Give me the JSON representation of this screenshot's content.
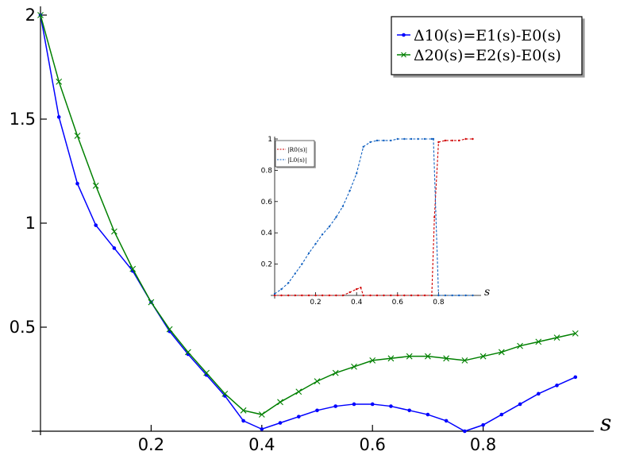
{
  "chart_data": [
    {
      "type": "line",
      "xlabel": "s",
      "ylabel": "",
      "xlim": [
        0,
        1
      ],
      "ylim": [
        0,
        2
      ],
      "xticks": [
        "0.2",
        "0.4",
        "0.6",
        "0.8"
      ],
      "yticks": [
        "0.5",
        "1",
        "1.5",
        "2"
      ],
      "legend_position": "top-right",
      "x": [
        0.0,
        0.0333,
        0.0667,
        0.1,
        0.1333,
        0.1667,
        0.2,
        0.2333,
        0.2667,
        0.3,
        0.3333,
        0.3667,
        0.4,
        0.4333,
        0.4667,
        0.5,
        0.5333,
        0.5667,
        0.6,
        0.6333,
        0.6667,
        0.7,
        0.7333,
        0.7667,
        0.8,
        0.8333,
        0.8667,
        0.9,
        0.9333,
        0.9667
      ],
      "series": [
        {
          "name": "Δ10(s)=E1(s)-E0(s)",
          "legend_text": "Δ10(s)=E1(s)-E0(s)",
          "color": "#0000ff",
          "marker": "dot",
          "values": [
            2.0,
            1.51,
            1.19,
            0.99,
            0.88,
            0.77,
            0.62,
            0.48,
            0.37,
            0.27,
            0.17,
            0.05,
            0.01,
            0.04,
            0.07,
            0.1,
            0.12,
            0.13,
            0.13,
            0.12,
            0.1,
            0.08,
            0.05,
            0.0,
            0.03,
            0.08,
            0.13,
            0.18,
            0.22,
            0.26
          ]
        },
        {
          "name": "Δ20(s)=E2(s)-E0(s)",
          "legend_text": "Δ20(s)=E2(s)-E0(s)",
          "color": "#008000",
          "marker": "x",
          "values": [
            2.0,
            1.68,
            1.42,
            1.18,
            0.96,
            0.78,
            0.62,
            0.49,
            0.38,
            0.28,
            0.18,
            0.1,
            0.08,
            0.14,
            0.19,
            0.24,
            0.28,
            0.31,
            0.34,
            0.35,
            0.36,
            0.36,
            0.35,
            0.34,
            0.36,
            0.38,
            0.41,
            0.43,
            0.45,
            0.47
          ]
        }
      ]
    },
    {
      "type": "line",
      "xlabel": "s",
      "ylabel": "",
      "xlim": [
        0,
        1
      ],
      "ylim": [
        0,
        1
      ],
      "xticks": [
        "0.2",
        "0.4",
        "0.6",
        "0.8"
      ],
      "yticks": [
        "0.2",
        "0.4",
        "0.6",
        "0.8",
        "1"
      ],
      "legend_position": "top-left",
      "series": [
        {
          "name": "|R0(s)|",
          "legend_text": "|R0(s)|",
          "color": "#d00000",
          "x": [
            0.0,
            0.033,
            0.067,
            0.1,
            0.133,
            0.167,
            0.2,
            0.233,
            0.267,
            0.3,
            0.333,
            0.367,
            0.4,
            0.42,
            0.433,
            0.467,
            0.5,
            0.533,
            0.567,
            0.6,
            0.633,
            0.667,
            0.7,
            0.733,
            0.767,
            0.78,
            0.8,
            0.833,
            0.867,
            0.9,
            0.933,
            0.967
          ],
          "values": [
            0.0,
            0.0,
            0.0,
            0.0,
            0.0,
            0.0,
            0.0,
            0.0,
            0.0,
            0.0,
            0.0,
            0.02,
            0.04,
            0.05,
            0.0,
            0.0,
            0.0,
            0.0,
            0.0,
            0.0,
            0.0,
            0.0,
            0.0,
            0.0,
            0.0,
            0.5,
            0.98,
            0.99,
            0.99,
            0.99,
            1.0,
            1.0
          ]
        },
        {
          "name": "|L0(s)|",
          "legend_text": "|L0(s)|",
          "color": "#1060c0",
          "x": [
            0.0,
            0.033,
            0.067,
            0.1,
            0.133,
            0.167,
            0.2,
            0.233,
            0.267,
            0.3,
            0.333,
            0.367,
            0.4,
            0.433,
            0.467,
            0.5,
            0.533,
            0.567,
            0.6,
            0.633,
            0.667,
            0.7,
            0.733,
            0.767,
            0.775,
            0.8,
            0.833,
            0.867,
            0.9,
            0.933,
            0.967
          ],
          "values": [
            0.01,
            0.04,
            0.08,
            0.14,
            0.2,
            0.27,
            0.33,
            0.39,
            0.44,
            0.5,
            0.57,
            0.67,
            0.78,
            0.95,
            0.98,
            0.99,
            0.99,
            0.99,
            1.0,
            1.0,
            1.0,
            1.0,
            1.0,
            1.0,
            1.0,
            0.0,
            0.0,
            0.0,
            0.0,
            0.0,
            0.0
          ]
        }
      ]
    }
  ]
}
